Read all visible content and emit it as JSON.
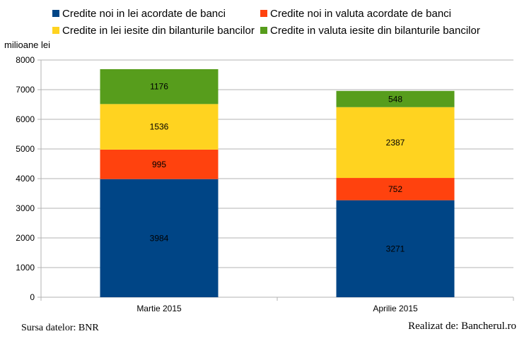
{
  "chart_data": {
    "type": "bar",
    "stacked": true,
    "categories": [
      "Martie 2015",
      "Aprilie 2015"
    ],
    "series": [
      {
        "name": "Credite noi in lei acordate de banci",
        "values": [
          3984,
          3271
        ],
        "color": "#004586"
      },
      {
        "name": "Credite noi in valuta acordate de banci",
        "values": [
          995,
          752
        ],
        "color": "#ff420e"
      },
      {
        "name": "Credite in lei iesite din bilanturile bancilor",
        "values": [
          1536,
          2387
        ],
        "color": "#ffd320"
      },
      {
        "name": "Credite in valuta iesite din bilanturile bancilor",
        "values": [
          1176,
          548
        ],
        "color": "#579d1c"
      }
    ],
    "ylabel": "milioane lei",
    "ylim": [
      0,
      8000
    ],
    "yticks": [
      0,
      1000,
      2000,
      3000,
      4000,
      5000,
      6000,
      7000,
      8000
    ],
    "grid": true,
    "legend_position": "top"
  },
  "footer": {
    "source": "Sursa datelor: BNR",
    "credit": "Realizat de: Bancherul.ro"
  }
}
